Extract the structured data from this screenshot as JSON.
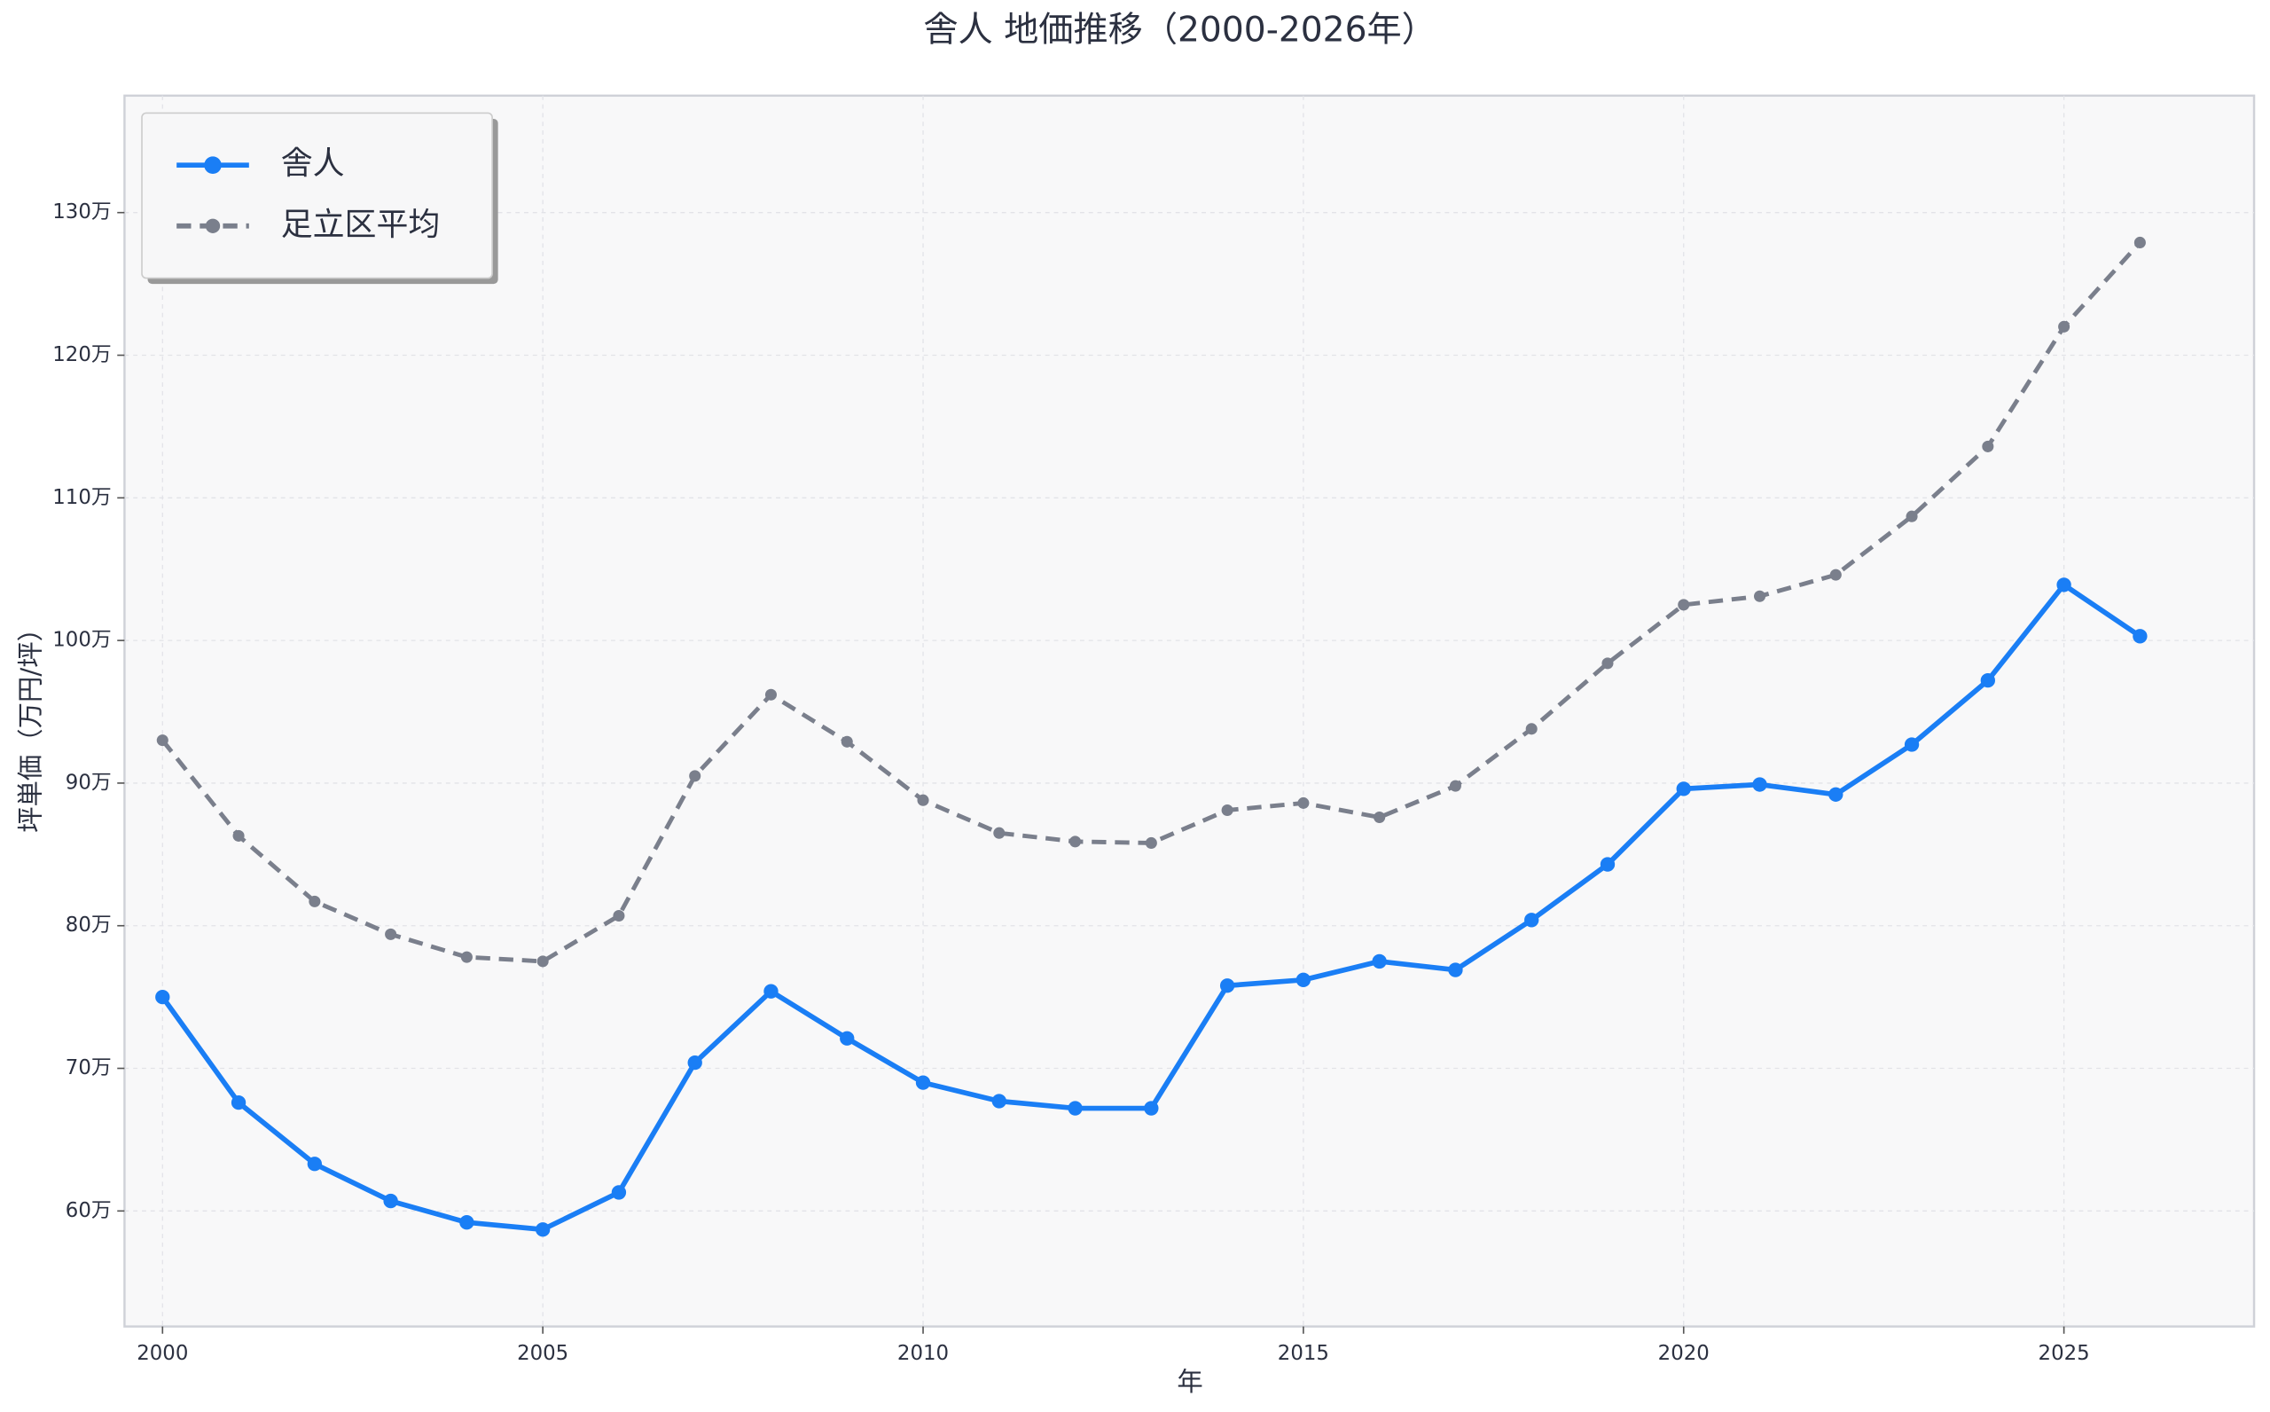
{
  "chart_data": {
    "type": "line",
    "title": "舎人 地価推移（2000-2026年）",
    "x_label": "年",
    "y_label": "坪単価（万円/坪）",
    "x": [
      2000,
      2001,
      2002,
      2003,
      2004,
      2005,
      2006,
      2007,
      2008,
      2009,
      2010,
      2011,
      2012,
      2013,
      2014,
      2015,
      2016,
      2017,
      2018,
      2019,
      2020,
      2021,
      2022,
      2023,
      2024,
      2025,
      2026
    ],
    "series": [
      {
        "name": "舎人",
        "color": "#1a7ef5",
        "dashed": false,
        "values": [
          750000,
          676000,
          633000,
          607000,
          592000,
          587000,
          613000,
          704000,
          754000,
          721000,
          690000,
          677000,
          672000,
          672000,
          758000,
          762000,
          775000,
          769000,
          804000,
          843000,
          896000,
          899000,
          892000,
          927000,
          972000,
          1039000,
          1003000
        ]
      },
      {
        "name": "足立区平均",
        "color": "#7a7f8c",
        "dashed": true,
        "values": [
          930000,
          863000,
          817000,
          794000,
          778000,
          775000,
          807000,
          905000,
          962000,
          929000,
          888000,
          865000,
          859000,
          858000,
          881000,
          886000,
          876000,
          898000,
          938000,
          984000,
          1025000,
          1031000,
          1046000,
          1087000,
          1136000,
          1220000,
          1279000
        ]
      }
    ],
    "xlim": [
      1999.5,
      2027.5
    ],
    "xticks": [
      2000,
      2005,
      2010,
      2015,
      2020,
      2025
    ],
    "ylim": [
      519000,
      1382000
    ],
    "yticks": [
      {
        "value": 600000,
        "label": "60万"
      },
      {
        "value": 700000,
        "label": "70万"
      },
      {
        "value": 800000,
        "label": "80万"
      },
      {
        "value": 900000,
        "label": "90万"
      },
      {
        "value": 1000000,
        "label": "100万"
      },
      {
        "value": 1100000,
        "label": "110万"
      },
      {
        "value": 1200000,
        "label": "120万"
      },
      {
        "value": 1300000,
        "label": "130万"
      }
    ],
    "grid": true,
    "legend_position": "upper left"
  }
}
